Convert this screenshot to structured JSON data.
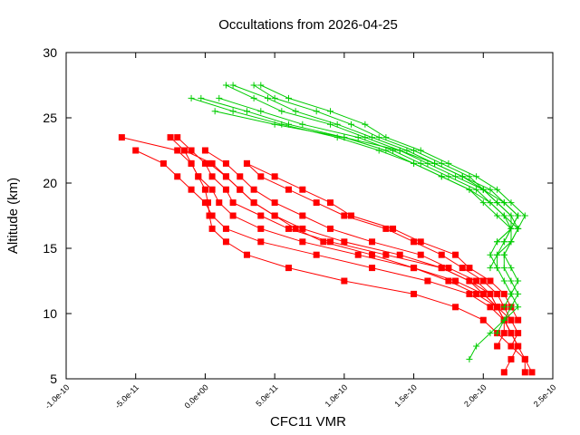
{
  "chart_data": {
    "type": "line",
    "title": "Occultations from 2026-04-25",
    "xlabel": "CFC11 VMR",
    "ylabel": "Altitude (km)",
    "xlim": [
      -1e-10,
      2.5e-10
    ],
    "ylim": [
      5,
      30
    ],
    "x_ticks": [
      -1e-10,
      -5e-11,
      0,
      5e-11,
      1e-10,
      1.5e-10,
      2e-10,
      2.5e-10
    ],
    "x_tick_labels": [
      "-1.0e-10",
      "-5.0e-11",
      "0.0e+00",
      "5.0e-11",
      "1.0e-10",
      "1.5e-10",
      "2.0e-10",
      "2.5e-10"
    ],
    "y_ticks": [
      5,
      10,
      15,
      20,
      25,
      30
    ],
    "y_tick_labels": [
      "5",
      "10",
      "15",
      "20",
      "25",
      "30"
    ],
    "grid": false,
    "legend": "none",
    "series": [
      {
        "color": "#ff0000",
        "marker": "square",
        "points": [
          [
            -6e-11,
            23.5
          ],
          [
            -2e-11,
            22.5
          ],
          [
            -1e-11,
            21.5
          ],
          [
            -5e-12,
            20.5
          ],
          [
            0,
            19.5
          ],
          [
            2e-12,
            18.5
          ],
          [
            3e-12,
            17.5
          ],
          [
            5e-12,
            16.5
          ],
          [
            1.5e-11,
            15.5
          ],
          [
            3e-11,
            14.5
          ],
          [
            6e-11,
            13.5
          ],
          [
            1e-10,
            12.5
          ],
          [
            1.5e-10,
            11.5
          ],
          [
            1.8e-10,
            10.5
          ],
          [
            2e-10,
            9.5
          ],
          [
            2.1e-10,
            8.5
          ],
          [
            2.2e-10,
            7.5
          ],
          [
            2.3e-10,
            6.5
          ],
          [
            2.35e-10,
            5.5
          ]
        ]
      },
      {
        "color": "#ff0000",
        "marker": "square",
        "points": [
          [
            -5e-11,
            22.5
          ],
          [
            -3e-11,
            21.5
          ],
          [
            -2e-11,
            20.5
          ],
          [
            -1e-11,
            19.5
          ],
          [
            0,
            18.5
          ],
          [
            5e-12,
            17.5
          ],
          [
            1.5e-11,
            16.5
          ],
          [
            4e-11,
            15.5
          ],
          [
            8e-11,
            14.5
          ],
          [
            1.2e-10,
            13.5
          ],
          [
            1.6e-10,
            12.5
          ],
          [
            1.9e-10,
            11.5
          ],
          [
            2.05e-10,
            10.5
          ],
          [
            2.15e-10,
            9.5
          ],
          [
            2.2e-10,
            8.5
          ],
          [
            2.25e-10,
            7.5
          ],
          [
            2.3e-10,
            6.5
          ],
          [
            2.3e-10,
            5.5
          ]
        ]
      },
      {
        "color": "#ff0000",
        "marker": "square",
        "points": [
          [
            -2.5e-11,
            23.5
          ],
          [
            -1.5e-11,
            22.5
          ],
          [
            -1e-11,
            21.5
          ],
          [
            -5e-12,
            20.5
          ],
          [
            5e-12,
            19.5
          ],
          [
            1e-11,
            18.5
          ],
          [
            2e-11,
            17.5
          ],
          [
            4e-11,
            16.5
          ],
          [
            7e-11,
            15.5
          ],
          [
            1.1e-10,
            14.5
          ],
          [
            1.5e-10,
            13.5
          ],
          [
            1.8e-10,
            12.5
          ],
          [
            2e-10,
            11.5
          ],
          [
            2.1e-10,
            10.5
          ],
          [
            2.15e-10,
            9.5
          ],
          [
            2.2e-10,
            8.5
          ],
          [
            2.25e-10,
            7.5
          ],
          [
            2.2e-10,
            6.5
          ],
          [
            2.15e-10,
            5.5
          ]
        ]
      },
      {
        "color": "#ff0000",
        "marker": "square",
        "points": [
          [
            -2e-11,
            23.5
          ],
          [
            -1e-11,
            22.5
          ],
          [
            0,
            21.5
          ],
          [
            5e-12,
            20.5
          ],
          [
            1.5e-11,
            19.5
          ],
          [
            2e-11,
            18.5
          ],
          [
            4e-11,
            17.5
          ],
          [
            6e-11,
            16.5
          ],
          [
            9e-11,
            15.5
          ],
          [
            1.3e-10,
            14.5
          ],
          [
            1.7e-10,
            13.5
          ],
          [
            1.9e-10,
            12.5
          ],
          [
            2.05e-10,
            11.5
          ],
          [
            2.1e-10,
            10.5
          ],
          [
            2.15e-10,
            9.5
          ],
          [
            2.2e-10,
            8.5
          ]
        ]
      },
      {
        "color": "#ff0000",
        "marker": "square",
        "points": [
          [
            -1.5e-11,
            22.5
          ],
          [
            5e-12,
            21.5
          ],
          [
            1.5e-11,
            20.5
          ],
          [
            2.5e-11,
            19.5
          ],
          [
            3.5e-11,
            18.5
          ],
          [
            5e-11,
            17.5
          ],
          [
            7e-11,
            16.5
          ],
          [
            1e-10,
            15.5
          ],
          [
            1.4e-10,
            14.5
          ],
          [
            1.7e-10,
            13.5
          ],
          [
            1.9e-10,
            12.5
          ],
          [
            2e-10,
            11.5
          ],
          [
            2.1e-10,
            10.5
          ],
          [
            2.2e-10,
            9.5
          ],
          [
            2.25e-10,
            8.5
          ],
          [
            2.2e-10,
            7.5
          ]
        ]
      },
      {
        "color": "#ff0000",
        "marker": "square",
        "points": [
          [
            0,
            22.5
          ],
          [
            1.5e-11,
            21.5
          ],
          [
            2.5e-11,
            20.5
          ],
          [
            3.5e-11,
            19.5
          ],
          [
            5e-11,
            18.5
          ],
          [
            7e-11,
            17.5
          ],
          [
            9e-11,
            16.5
          ],
          [
            1.2e-10,
            15.5
          ],
          [
            1.55e-10,
            14.5
          ],
          [
            1.75e-10,
            13.5
          ],
          [
            1.95e-10,
            12.5
          ],
          [
            2.05e-10,
            11.5
          ],
          [
            2.1e-10,
            10.5
          ],
          [
            2.15e-10,
            9.5
          ],
          [
            2.15e-10,
            8.5
          ],
          [
            2.1e-10,
            7.5
          ]
        ]
      },
      {
        "color": "#ff0000",
        "marker": "square",
        "points": [
          [
            3e-11,
            21.5
          ],
          [
            4e-11,
            20.5
          ],
          [
            6e-11,
            19.5
          ],
          [
            8e-11,
            18.5
          ],
          [
            1e-10,
            17.5
          ],
          [
            1.3e-10,
            16.5
          ],
          [
            1.5e-10,
            15.5
          ],
          [
            1.7e-10,
            14.5
          ],
          [
            1.85e-10,
            13.5
          ],
          [
            2e-10,
            12.5
          ],
          [
            2.1e-10,
            11.5
          ],
          [
            2.15e-10,
            10.5
          ],
          [
            2.2e-10,
            9.5
          ]
        ]
      },
      {
        "color": "#ff0000",
        "marker": "square",
        "points": [
          [
            3e-11,
            21.5
          ],
          [
            5e-11,
            20.5
          ],
          [
            7e-11,
            19.5
          ],
          [
            9e-11,
            18.5
          ],
          [
            1.05e-10,
            17.5
          ],
          [
            1.35e-10,
            16.5
          ],
          [
            1.55e-10,
            15.5
          ],
          [
            1.8e-10,
            14.5
          ],
          [
            1.9e-10,
            13.5
          ],
          [
            2.05e-10,
            12.5
          ],
          [
            2.15e-10,
            11.5
          ],
          [
            2.2e-10,
            10.5
          ],
          [
            2.25e-10,
            9.5
          ]
        ]
      },
      {
        "color": "#ff0000",
        "marker": "square",
        "points": [
          [
            3e-12,
            21.5
          ],
          [
            1.5e-11,
            20.5
          ],
          [
            2.5e-11,
            19.5
          ],
          [
            3.5e-11,
            18.5
          ],
          [
            5e-11,
            17.5
          ],
          [
            6.5e-11,
            16.5
          ],
          [
            8.5e-11,
            15.5
          ],
          [
            1.2e-10,
            14.5
          ],
          [
            1.5e-10,
            13.5
          ],
          [
            1.75e-10,
            12.5
          ],
          [
            1.95e-10,
            11.5
          ],
          [
            2.1e-10,
            10.5
          ]
        ]
      },
      {
        "color": "#00cc00",
        "marker": "plus",
        "points": [
          [
            -3e-12,
            26.5
          ],
          [
            3e-11,
            25.5
          ],
          [
            6e-11,
            24.5
          ],
          [
            1e-10,
            23.5
          ],
          [
            1.3e-10,
            22.5
          ],
          [
            1.5e-10,
            21.5
          ],
          [
            1.7e-10,
            20.5
          ],
          [
            1.9e-10,
            19.5
          ],
          [
            2e-10,
            18.5
          ],
          [
            2.1e-10,
            17.5
          ],
          [
            2.2e-10,
            16.5
          ],
          [
            2.15e-10,
            15.5
          ],
          [
            2.1e-10,
            14.5
          ],
          [
            2.1e-10,
            13.5
          ],
          [
            2.15e-10,
            12.5
          ],
          [
            2.2e-10,
            11.5
          ],
          [
            2.25e-10,
            10.5
          ],
          [
            2.15e-10,
            9.5
          ],
          [
            2.05e-10,
            8.5
          ],
          [
            1.95e-10,
            7.5
          ],
          [
            1.9e-10,
            6.5
          ]
        ]
      },
      {
        "color": "#00cc00",
        "marker": "plus",
        "points": [
          [
            1e-11,
            26.5
          ],
          [
            4e-11,
            25.5
          ],
          [
            7e-11,
            24.5
          ],
          [
            1.1e-10,
            23.5
          ],
          [
            1.35e-10,
            22.5
          ],
          [
            1.55e-10,
            21.5
          ],
          [
            1.75e-10,
            20.5
          ],
          [
            1.95e-10,
            19.5
          ],
          [
            2.05e-10,
            18.5
          ],
          [
            2.15e-10,
            17.5
          ],
          [
            2.2e-10,
            16.5
          ],
          [
            2.2e-10,
            15.5
          ],
          [
            2.15e-10,
            14.5
          ],
          [
            2.15e-10,
            13.5
          ],
          [
            2.2e-10,
            12.5
          ],
          [
            2.25e-10,
            11.5
          ],
          [
            2.2e-10,
            10.5
          ],
          [
            2.15e-10,
            9.5
          ],
          [
            2.1e-10,
            8.5
          ]
        ]
      },
      {
        "color": "#00cc00",
        "marker": "plus",
        "points": [
          [
            1.5e-11,
            27.5
          ],
          [
            3.5e-11,
            26.5
          ],
          [
            5.5e-11,
            25.5
          ],
          [
            9e-11,
            24.5
          ],
          [
            1.15e-10,
            23.5
          ],
          [
            1.4e-10,
            22.5
          ],
          [
            1.6e-10,
            21.5
          ],
          [
            1.8e-10,
            20.5
          ],
          [
            2e-10,
            19.5
          ],
          [
            2.1e-10,
            18.5
          ],
          [
            2.2e-10,
            17.5
          ],
          [
            2.25e-10,
            16.5
          ],
          [
            2.2e-10,
            15.5
          ],
          [
            2.15e-10,
            14.5
          ],
          [
            2.2e-10,
            13.5
          ],
          [
            2.25e-10,
            12.5
          ],
          [
            2.2e-10,
            11.5
          ],
          [
            2.15e-10,
            10.5
          ]
        ]
      },
      {
        "color": "#00cc00",
        "marker": "plus",
        "points": [
          [
            2e-11,
            27.5
          ],
          [
            4.5e-11,
            26.5
          ],
          [
            6.5e-11,
            25.5
          ],
          [
            9.5e-11,
            24.5
          ],
          [
            1.2e-10,
            23.5
          ],
          [
            1.45e-10,
            22.5
          ],
          [
            1.65e-10,
            21.5
          ],
          [
            1.85e-10,
            20.5
          ],
          [
            2.05e-10,
            19.5
          ],
          [
            2.15e-10,
            18.5
          ],
          [
            2.25e-10,
            17.5
          ],
          [
            2.2e-10,
            16.5
          ],
          [
            2.15e-10,
            15.5
          ]
        ]
      },
      {
        "color": "#00cc00",
        "marker": "plus",
        "points": [
          [
            3.5e-11,
            27.5
          ],
          [
            5e-11,
            26.5
          ],
          [
            8e-11,
            25.5
          ],
          [
            1.05e-10,
            24.5
          ],
          [
            1.25e-10,
            23.5
          ],
          [
            1.5e-10,
            22.5
          ],
          [
            1.7e-10,
            21.5
          ],
          [
            1.9e-10,
            20.5
          ],
          [
            2e-10,
            19.5
          ],
          [
            2.15e-10,
            18.5
          ],
          [
            2.25e-10,
            17.5
          ],
          [
            2.2e-10,
            16.5
          ],
          [
            2.1e-10,
            15.5
          ]
        ]
      },
      {
        "color": "#00cc00",
        "marker": "plus",
        "points": [
          [
            4e-11,
            27.5
          ],
          [
            6e-11,
            26.5
          ],
          [
            9e-11,
            25.5
          ],
          [
            1.15e-10,
            24.5
          ],
          [
            1.3e-10,
            23.5
          ],
          [
            1.55e-10,
            22.5
          ],
          [
            1.75e-10,
            21.5
          ],
          [
            1.95e-10,
            20.5
          ],
          [
            2.1e-10,
            19.5
          ],
          [
            2.2e-10,
            18.5
          ],
          [
            2.3e-10,
            17.5
          ],
          [
            2.25e-10,
            16.5
          ]
        ]
      },
      {
        "color": "#00cc00",
        "marker": "plus",
        "points": [
          [
            7e-12,
            25.5
          ],
          [
            5e-11,
            24.5
          ],
          [
            1e-10,
            23.5
          ],
          [
            1.4e-10,
            22.5
          ],
          [
            1.65e-10,
            21.5
          ],
          [
            1.85e-10,
            20.5
          ],
          [
            2e-10,
            19.5
          ],
          [
            2.1e-10,
            18.5
          ],
          [
            2.2e-10,
            17.5
          ],
          [
            2.2e-10,
            16.5
          ],
          [
            2.1e-10,
            15.5
          ],
          [
            2.05e-10,
            14.5
          ],
          [
            2.1e-10,
            13.5
          ]
        ]
      },
      {
        "color": "#00cc00",
        "marker": "plus",
        "points": [
          [
            -1e-11,
            26.5
          ],
          [
            2e-11,
            25.5
          ],
          [
            5.5e-11,
            24.5
          ],
          [
            9.5e-11,
            23.5
          ],
          [
            1.25e-10,
            22.5
          ],
          [
            1.5e-10,
            21.5
          ],
          [
            1.7e-10,
            20.5
          ],
          [
            1.9e-10,
            19.5
          ],
          [
            2.05e-10,
            18.5
          ],
          [
            2.15e-10,
            17.5
          ],
          [
            2.25e-10,
            16.5
          ],
          [
            2.2e-10,
            15.5
          ],
          [
            2.1e-10,
            14.5
          ],
          [
            2.05e-10,
            13.5
          ]
        ]
      }
    ]
  }
}
